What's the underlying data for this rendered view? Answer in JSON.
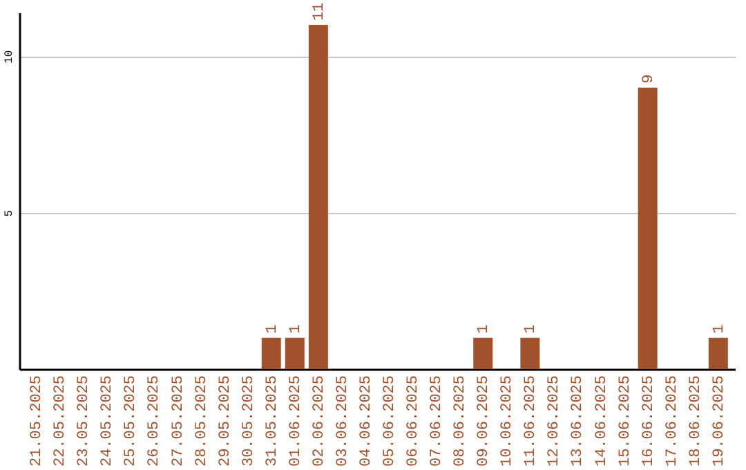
{
  "chart_data": {
    "type": "bar",
    "categories": [
      "21.05.2025",
      "22.05.2025",
      "23.05.2025",
      "24.05.2025",
      "25.05.2025",
      "26.05.2025",
      "27.05.2025",
      "28.05.2025",
      "29.05.2025",
      "30.05.2025",
      "31.05.2025",
      "01.06.2025",
      "02.06.2025",
      "03.06.2025",
      "04.06.2025",
      "05.06.2025",
      "06.06.2025",
      "07.06.2025",
      "08.06.2025",
      "09.06.2025",
      "10.06.2025",
      "11.06.2025",
      "12.06.2025",
      "13.06.2025",
      "14.06.2025",
      "15.06.2025",
      "16.06.2025",
      "17.06.2025",
      "18.06.2025",
      "19.06.2025"
    ],
    "values": [
      0,
      0,
      0,
      0,
      0,
      0,
      0,
      0,
      0,
      0,
      1,
      1,
      11,
      0,
      0,
      0,
      0,
      0,
      0,
      1,
      0,
      1,
      0,
      0,
      0,
      0,
      9,
      0,
      0,
      1
    ],
    "value_labels": [
      null,
      null,
      null,
      null,
      null,
      null,
      null,
      null,
      null,
      null,
      "1",
      "1",
      "11",
      null,
      null,
      null,
      null,
      null,
      null,
      "1",
      null,
      "1",
      null,
      null,
      null,
      null,
      "9",
      null,
      null,
      "1"
    ],
    "color": "#a0522d",
    "ylim": [
      0,
      11.4
    ],
    "yticks": [
      5,
      10
    ],
    "grid": "y"
  }
}
